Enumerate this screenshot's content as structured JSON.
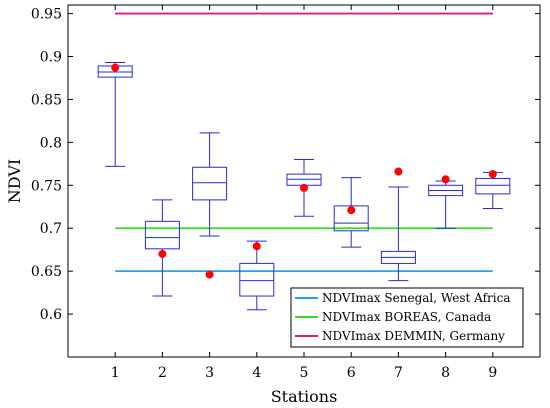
{
  "chart_data": {
    "type": "box",
    "xlabel": "Stations",
    "ylabel": "NDVI",
    "xlim": [
      0,
      10
    ],
    "ylim": [
      0.55,
      0.96
    ],
    "grid": false,
    "legend_position": "bottom-right",
    "x_ticks": [
      "1",
      "2",
      "3",
      "4",
      "5",
      "6",
      "7",
      "8",
      "9"
    ],
    "y_ticks": [
      "0.6",
      "0.65",
      "0.7",
      "0.75",
      "0.8",
      "0.85",
      "0.9",
      "0.95"
    ],
    "boxes": [
      {
        "x": 1,
        "whislo": 0.772,
        "q1": 0.876,
        "med": 0.882,
        "q3": 0.889,
        "whishi": 0.893,
        "point": 0.887
      },
      {
        "x": 2,
        "whislo": 0.621,
        "q1": 0.676,
        "med": 0.689,
        "q3": 0.708,
        "whishi": 0.733,
        "point": 0.67
      },
      {
        "x": 3,
        "whislo": 0.691,
        "q1": 0.733,
        "med": 0.753,
        "q3": 0.771,
        "whishi": 0.811,
        "point": 0.646
      },
      {
        "x": 4,
        "whislo": 0.605,
        "q1": 0.621,
        "med": 0.639,
        "q3": 0.659,
        "whishi": 0.685,
        "point": 0.679
      },
      {
        "x": 5,
        "whislo": 0.714,
        "q1": 0.75,
        "med": 0.757,
        "q3": 0.763,
        "whishi": 0.78,
        "point": 0.747
      },
      {
        "x": 6,
        "whislo": 0.678,
        "q1": 0.697,
        "med": 0.706,
        "q3": 0.726,
        "whishi": 0.759,
        "point": 0.721
      },
      {
        "x": 7,
        "whislo": 0.639,
        "q1": 0.659,
        "med": 0.666,
        "q3": 0.673,
        "whishi": 0.748,
        "point": 0.766
      },
      {
        "x": 8,
        "whislo": 0.7,
        "q1": 0.738,
        "med": 0.744,
        "q3": 0.75,
        "whishi": 0.755,
        "point": 0.757
      },
      {
        "x": 9,
        "whislo": 0.723,
        "q1": 0.74,
        "med": 0.75,
        "q3": 0.758,
        "whishi": 0.765,
        "point": 0.763
      }
    ],
    "reference_lines": [
      {
        "name": "NDVImax Senegal, West Africa",
        "value": 0.65,
        "color": "#1ea7e6"
      },
      {
        "name": "NDVImax BOREAS, Canada",
        "value": 0.7,
        "color": "#33dd1f"
      },
      {
        "name": "NDVImax DEMMIN, Germany",
        "value": 0.95,
        "color": "#e6197a"
      }
    ],
    "colors": {
      "box": "#2a2ad4",
      "point": "#ff0000",
      "axis": "#000000"
    }
  }
}
